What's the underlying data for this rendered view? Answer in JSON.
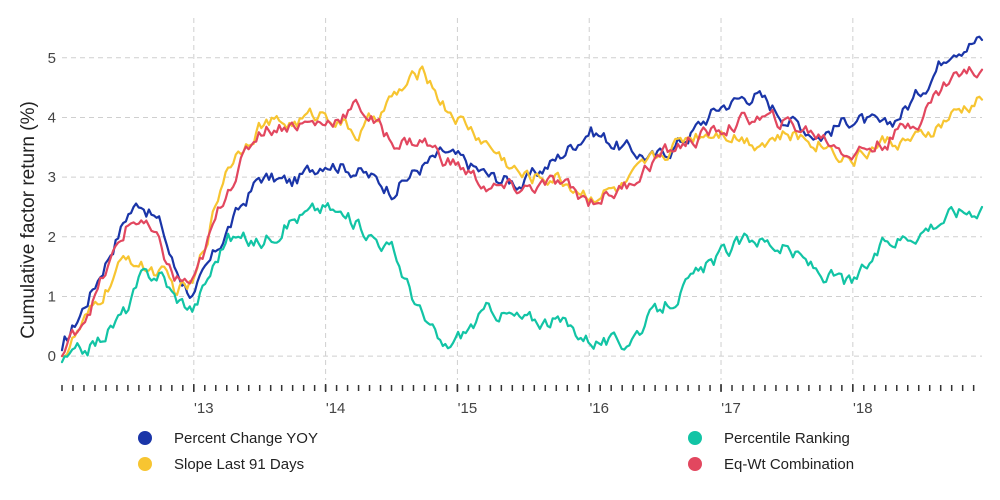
{
  "chart_data": {
    "type": "line",
    "title": "",
    "xlabel": "",
    "ylabel": "Cumulative factor return (%)",
    "xlim": [
      2012.0,
      2018.98
    ],
    "ylim": [
      -0.4,
      5.6
    ],
    "grid": true,
    "legend_position": "bottom",
    "x_ticks": [
      {
        "value": 2013,
        "label": "'13"
      },
      {
        "value": 2014,
        "label": "'14"
      },
      {
        "value": 2015,
        "label": "'15"
      },
      {
        "value": 2016,
        "label": "'16"
      },
      {
        "value": 2017,
        "label": "'17"
      },
      {
        "value": 2018,
        "label": "'18"
      }
    ],
    "y_ticks": [
      0,
      1,
      2,
      3,
      4,
      5
    ],
    "x": [
      2012.0,
      2012.25,
      2012.5,
      2012.6,
      2012.75,
      2012.85,
      2013.0,
      2013.25,
      2013.5,
      2013.75,
      2014.0,
      2014.25,
      2014.5,
      2014.75,
      2014.9,
      2015.0,
      2015.25,
      2015.5,
      2015.75,
      2016.0,
      2016.25,
      2016.5,
      2016.75,
      2017.0,
      2017.25,
      2017.5,
      2017.75,
      2018.0,
      2018.25,
      2018.5,
      2018.75,
      2018.98
    ],
    "series": [
      {
        "name": "Percent Change YOY",
        "color": "#1a35a8",
        "values": [
          0.1,
          1.2,
          2.4,
          2.6,
          2.2,
          1.5,
          1.0,
          2.1,
          3.0,
          2.9,
          3.3,
          3.1,
          2.8,
          3.2,
          3.4,
          3.3,
          3.0,
          2.9,
          3.3,
          3.8,
          3.5,
          3.3,
          3.7,
          4.2,
          4.4,
          4.0,
          3.7,
          4.0,
          3.8,
          4.4,
          5.2,
          5.3
        ]
      },
      {
        "name": "Slope Last 91 Days",
        "color": "#f7c531",
        "values": [
          0.0,
          0.8,
          1.7,
          1.5,
          1.4,
          1.1,
          1.2,
          3.2,
          3.9,
          3.9,
          4.1,
          3.7,
          4.3,
          4.8,
          4.2,
          4.0,
          3.5,
          3.0,
          3.0,
          2.7,
          2.8,
          3.3,
          3.7,
          3.8,
          3.6,
          3.7,
          3.6,
          3.3,
          3.6,
          3.6,
          4.0,
          4.3
        ]
      },
      {
        "name": "Percentile Ranking",
        "color": "#12c4a5",
        "values": [
          -0.1,
          0.2,
          0.8,
          1.3,
          1.4,
          1.0,
          0.8,
          2.0,
          1.9,
          2.3,
          2.5,
          2.2,
          1.8,
          0.6,
          0.1,
          0.3,
          0.8,
          0.6,
          0.6,
          0.3,
          0.2,
          0.7,
          1.2,
          1.7,
          2.0,
          1.8,
          1.4,
          1.2,
          1.9,
          2.1,
          2.4,
          2.5
        ]
      },
      {
        "name": "Eq-Wt Combination",
        "color": "#e2475f",
        "values": [
          0.0,
          1.0,
          2.2,
          2.3,
          1.8,
          1.3,
          1.2,
          2.8,
          3.8,
          3.9,
          3.9,
          4.2,
          3.6,
          3.6,
          3.3,
          3.2,
          2.8,
          2.8,
          2.9,
          2.6,
          2.8,
          3.3,
          3.6,
          3.8,
          4.0,
          3.9,
          3.7,
          3.4,
          3.6,
          4.0,
          4.7,
          4.8
        ]
      }
    ]
  }
}
